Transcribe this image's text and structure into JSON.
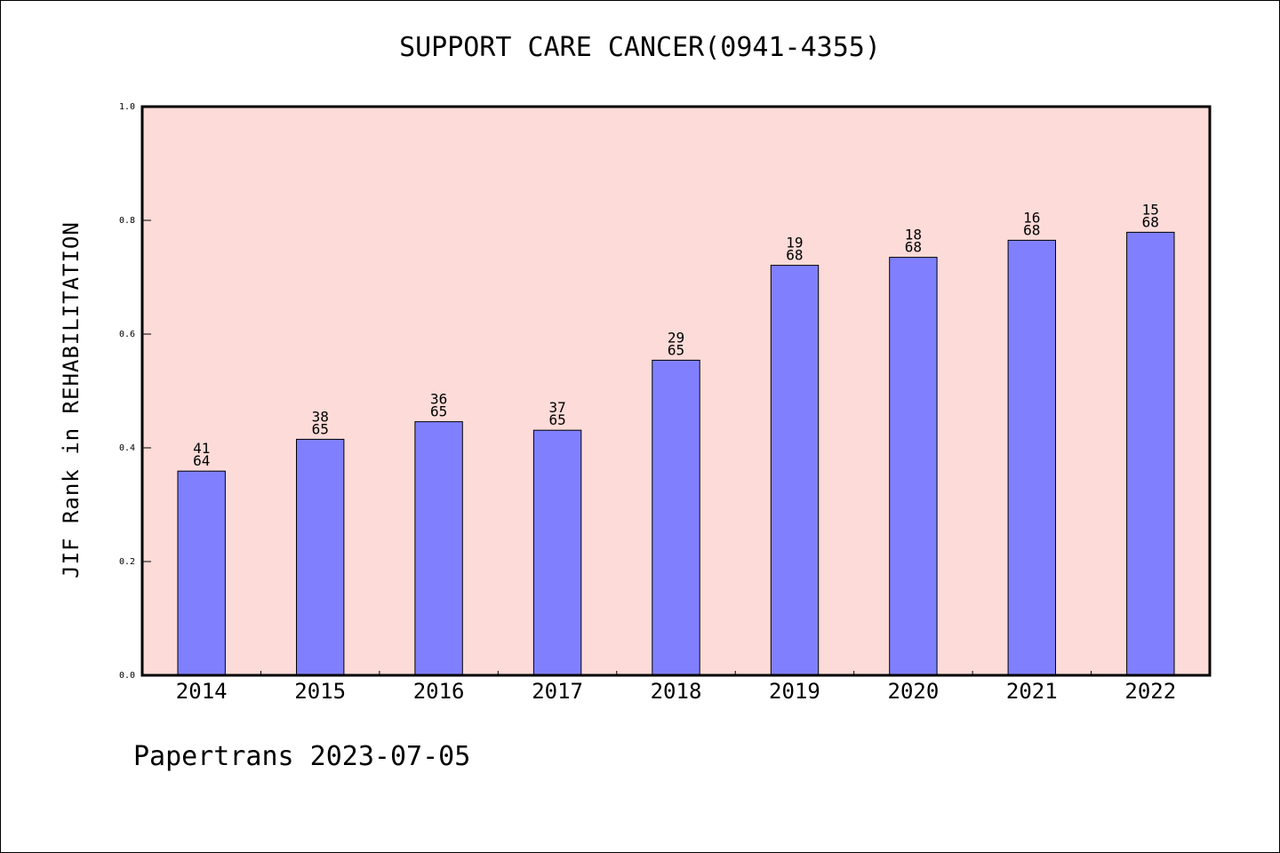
{
  "chart_data": {
    "type": "bar",
    "title": "SUPPORT CARE CANCER(0941-4355)",
    "xlabel": "",
    "ylabel": "JIF Rank in REHABILITATION",
    "categories": [
      "2014",
      "2015",
      "2016",
      "2017",
      "2018",
      "2019",
      "2020",
      "2021",
      "2022"
    ],
    "values": [
      0.359,
      0.415,
      0.446,
      0.431,
      0.554,
      0.721,
      0.735,
      0.765,
      0.779
    ],
    "ranks": [
      "41",
      "38",
      "36",
      "37",
      "29",
      "19",
      "18",
      "16",
      "15"
    ],
    "totals": [
      "64",
      "65",
      "65",
      "65",
      "65",
      "68",
      "68",
      "68",
      "68"
    ],
    "ylim": [
      0,
      1.0
    ],
    "yticks": [
      "0.0",
      "0.2",
      "0.4",
      "0.6",
      "0.8",
      "1.0"
    ],
    "grid": false,
    "legend": "none",
    "colors": {
      "plot_background": "#FDDBD8",
      "bar_fill": "#8080FF",
      "bar_stroke": "#000000",
      "axes": "#000000"
    }
  },
  "footer": "Papertrans 2023-07-05"
}
